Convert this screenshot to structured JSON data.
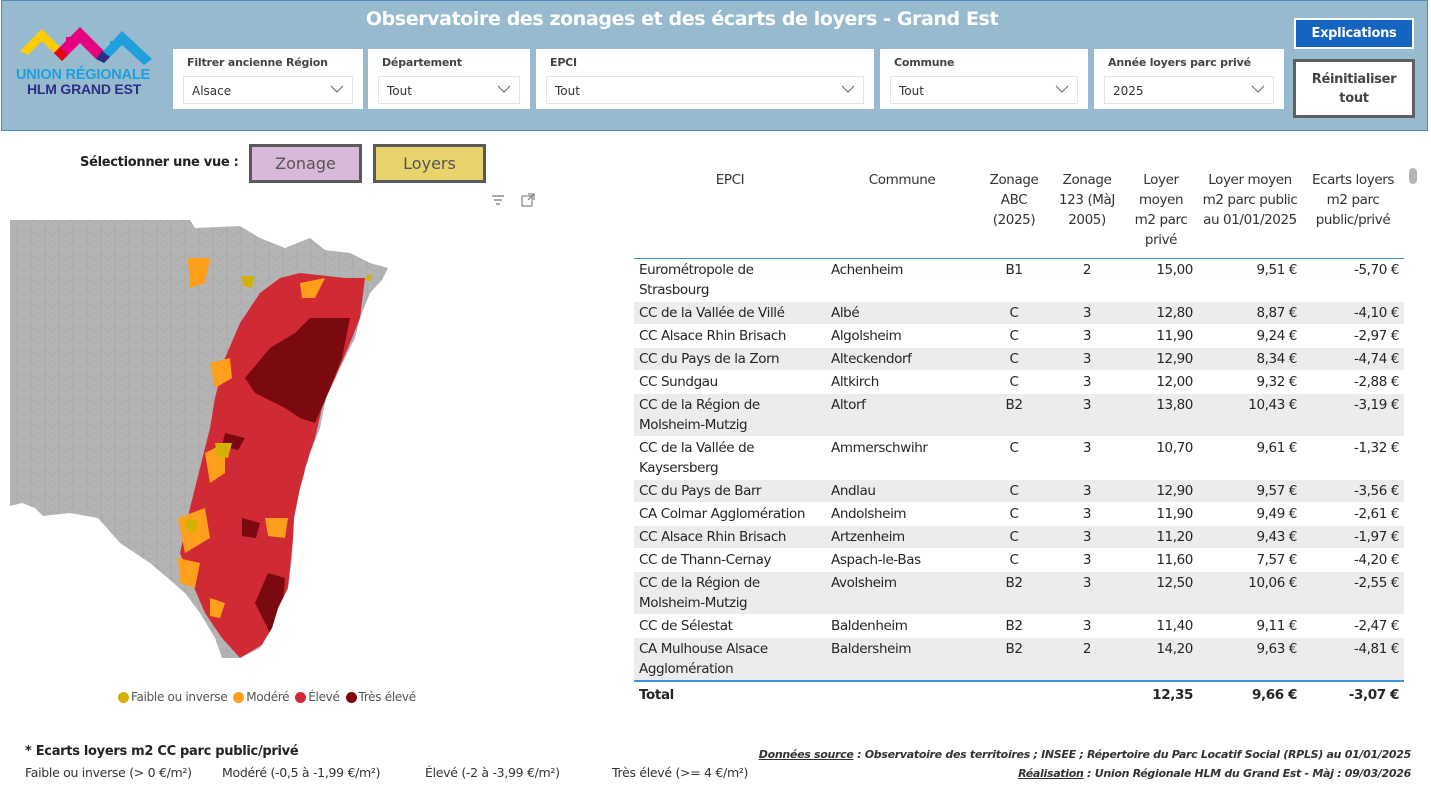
{
  "header": {
    "title": "Observatoire des zonages et des écarts de loyers - Grand Est",
    "logo_line1": "UNION RÉGIONALE",
    "logo_line2": "HLM GRAND EST",
    "accent_color": "#97bacf"
  },
  "filters": [
    {
      "label": "Filtrer ancienne Région",
      "value": "Alsace"
    },
    {
      "label": "Département",
      "value": "Tout"
    },
    {
      "label": "EPCI",
      "value": "Tout"
    },
    {
      "label": "Commune",
      "value": "Tout"
    },
    {
      "label": "Année loyers parc privé",
      "value": "2025"
    }
  ],
  "buttons": {
    "explications": "Explications",
    "reset_line1": "Réinitialiser",
    "reset_line2": "tout"
  },
  "view_selector": {
    "label": "Sélectionner une vue :",
    "options": [
      "Zonage",
      "Loyers"
    ],
    "selected": "Loyers"
  },
  "map": {
    "legend": [
      {
        "label": "Faible ou inverse",
        "color": "#d4b000"
      },
      {
        "label": "Modéré",
        "color": "#ff9f1c"
      },
      {
        "label": "Élevé",
        "color": "#d02a35"
      },
      {
        "label": "Très élevé",
        "color": "#7a0a10"
      }
    ]
  },
  "note": {
    "title": "* Ecarts loyers m2 CC parc public/privé",
    "scale": [
      "Faible ou inverse (> 0 €/m²)",
      "Modéré (-0,5 à -1,99 €/m²)",
      "Élevé (-2 à -3,99 €/m²)",
      "Très élevé (>= 4 €/m²)"
    ]
  },
  "source": {
    "label1": "Données source",
    "text1": " : Observatoire des territoires ; INSEE ; Répertoire du Parc Locatif Social (RPLS) au 01/01/2025",
    "label2": "Réalisation",
    "text2": " : Union Régionale HLM du Grand Est - Màj : 09/03/2026"
  },
  "table": {
    "columns": [
      "EPCI",
      "Commune",
      "Zonage ABC (2025)",
      "Zonage 123 (MàJ 2005)",
      "Loyer moyen m2 parc privé",
      "Loyer moyen m2 parc public au 01/01/2025",
      "Ecarts loyers m2 parc public/privé"
    ],
    "rows": [
      [
        "Eurométropole de Strasbourg",
        "Achenheim",
        "B1",
        "2",
        "15,00",
        "9,51 €",
        "-5,70 €"
      ],
      [
        "CC de la Vallée de Villé",
        "Albé",
        "C",
        "3",
        "12,80",
        "8,87 €",
        "-4,10 €"
      ],
      [
        "CC Alsace Rhin Brisach",
        "Algolsheim",
        "C",
        "3",
        "11,90",
        "9,24 €",
        "-2,97 €"
      ],
      [
        "CC du Pays de la Zorn",
        "Alteckendorf",
        "C",
        "3",
        "12,90",
        "8,34 €",
        "-4,74 €"
      ],
      [
        "CC Sundgau",
        "Altkirch",
        "C",
        "3",
        "12,00",
        "9,32 €",
        "-2,88 €"
      ],
      [
        "CC de la Région de Molsheim-Mutzig",
        "Altorf",
        "B2",
        "3",
        "13,80",
        "10,43 €",
        "-3,19 €"
      ],
      [
        "CC de la Vallée de Kaysersberg",
        "Ammerschwihr",
        "C",
        "3",
        "10,70",
        "9,61 €",
        "-1,32 €"
      ],
      [
        "CC du Pays de Barr",
        "Andlau",
        "C",
        "3",
        "12,90",
        "9,57 €",
        "-3,56 €"
      ],
      [
        "CA Colmar Agglomération",
        "Andolsheim",
        "C",
        "3",
        "11,90",
        "9,49 €",
        "-2,61 €"
      ],
      [
        "CC Alsace Rhin Brisach",
        "Artzenheim",
        "C",
        "3",
        "11,20",
        "9,43 €",
        "-1,97 €"
      ],
      [
        "CC de Thann-Cernay",
        "Aspach-le-Bas",
        "C",
        "3",
        "11,60",
        "7,57 €",
        "-4,20 €"
      ],
      [
        "CC de la Région de Molsheim-Mutzig",
        "Avolsheim",
        "B2",
        "3",
        "12,50",
        "10,06 €",
        "-2,55 €"
      ],
      [
        "CC de Sélestat",
        "Baldenheim",
        "B2",
        "3",
        "11,40",
        "9,11 €",
        "-2,47 €"
      ],
      [
        "CA Mulhouse Alsace Agglomération",
        "Baldersheim",
        "B2",
        "2",
        "14,20",
        "9,63 €",
        "-4,81 €"
      ]
    ],
    "total": {
      "label": "Total",
      "loyer_prive": "12,35",
      "loyer_public": "9,66 €",
      "ecart": "-3,07 €"
    }
  }
}
